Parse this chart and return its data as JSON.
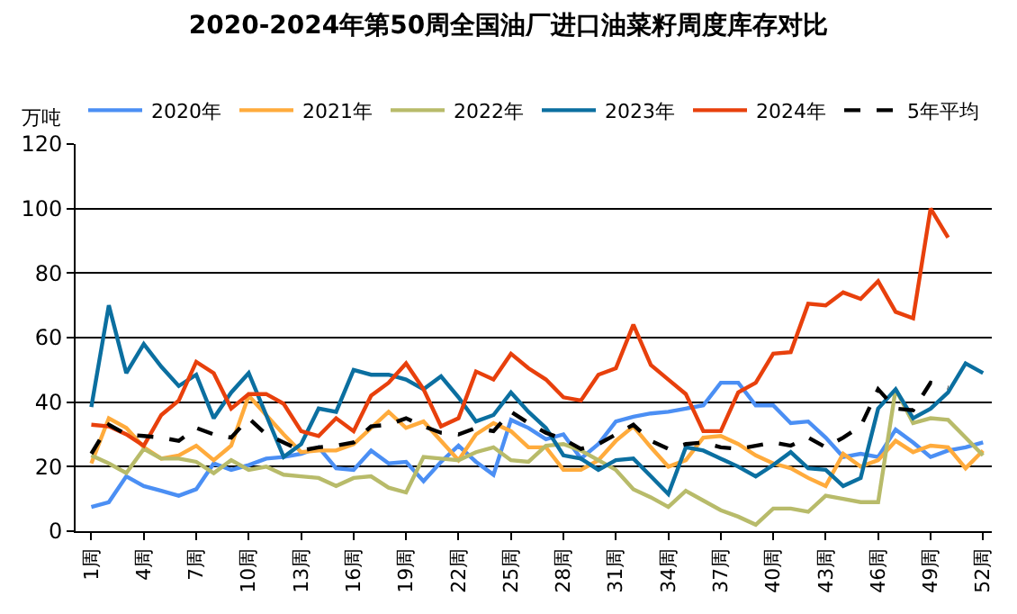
{
  "chart_data": {
    "type": "line",
    "title": "2020-2024年第50周全国油厂进口油菜籽周度库存对比",
    "ylabel": "万吨",
    "categories": [
      "1周",
      null,
      null,
      "4周",
      null,
      null,
      "7周",
      null,
      null,
      "10周",
      null,
      null,
      "13周",
      null,
      null,
      "16周",
      null,
      null,
      "19周",
      null,
      null,
      "22周",
      null,
      null,
      "25周",
      null,
      null,
      "28周",
      null,
      null,
      "31周",
      null,
      null,
      "34周",
      null,
      null,
      "37周",
      null,
      null,
      "40周",
      null,
      null,
      "43周",
      null,
      null,
      "46周",
      null,
      null,
      "49周",
      null,
      null,
      "52周"
    ],
    "ylim": [
      0,
      120
    ],
    "yticks": [
      0,
      20,
      40,
      60,
      80,
      100,
      120
    ],
    "grid": "y",
    "legend": "top",
    "marker": "none",
    "line_style": "solid",
    "series": [
      {
        "name": "2020年",
        "color": "#4b8ff4",
        "values": [
          7.5,
          9,
          17,
          14,
          12.5,
          11,
          13,
          21,
          19,
          20.5,
          22.5,
          23,
          24,
          26,
          19.5,
          19,
          25,
          21,
          21.5,
          15.5,
          21.5,
          26.5,
          21.5,
          17.5,
          34.5,
          32,
          28.5,
          30,
          22.5,
          27,
          34,
          35.5,
          36.5,
          37,
          38,
          39,
          46,
          46,
          39,
          39,
          33.5,
          34,
          29,
          23,
          24,
          23,
          31.5,
          27.5,
          23,
          25,
          26,
          27.5
        ]
      },
      {
        "name": "2021年",
        "color": "#ffab3c",
        "values": [
          21,
          35,
          32,
          26,
          22.5,
          23.5,
          26.5,
          22,
          26.5,
          42,
          36,
          30,
          24.5,
          25,
          25,
          27,
          32,
          37,
          32,
          34,
          28,
          22,
          30,
          33.5,
          31,
          26,
          26,
          19,
          19,
          22,
          28,
          32.5,
          26,
          20,
          22,
          29,
          29.5,
          27,
          23.5,
          21,
          19.5,
          16.5,
          14,
          24,
          20,
          22,
          28,
          24.5,
          26.5,
          26,
          19.5,
          25
        ]
      },
      {
        "name": "2022年",
        "color": "#b8bb6a",
        "values": [
          23.5,
          21,
          18,
          25.5,
          22.5,
          22.5,
          21.5,
          18,
          22,
          19,
          20,
          17.5,
          17,
          16.5,
          14,
          16.5,
          17,
          13.5,
          12,
          23,
          22.5,
          22,
          24.5,
          26,
          22,
          21.5,
          26.5,
          27,
          25,
          22,
          19,
          13,
          10.5,
          7.5,
          12.5,
          9.5,
          6.5,
          4.5,
          2,
          7,
          7,
          6,
          11,
          10,
          9,
          9,
          44,
          33.5,
          35,
          34.5,
          29,
          23.5
        ]
      },
      {
        "name": "2023年",
        "color": "#0b6fa0",
        "values": [
          38.5,
          70,
          49,
          58,
          51,
          45,
          48.5,
          35,
          43,
          49,
          36,
          23,
          27,
          38,
          37,
          50,
          48.5,
          48.5,
          47,
          44,
          48,
          41.5,
          34,
          36,
          43,
          37,
          32,
          23.5,
          22.5,
          19,
          22,
          22.5,
          17,
          11.5,
          26,
          25,
          22.5,
          20,
          17,
          20.5,
          24.5,
          19.5,
          19,
          14,
          16.5,
          38,
          44,
          35,
          38,
          43,
          52,
          49
        ]
      },
      {
        "name": "2024年",
        "color": "#e8400c",
        "values": [
          33,
          32.5,
          30,
          26.5,
          36,
          40.5,
          52.5,
          49,
          38,
          42.5,
          42.5,
          39.5,
          31,
          29.5,
          35,
          31,
          42,
          46,
          52,
          44,
          32.5,
          35,
          49.5,
          47,
          55,
          50.5,
          47,
          41.5,
          40.5,
          48.5,
          50.5,
          64,
          51.5,
          47,
          42.5,
          31,
          31,
          43,
          46,
          55,
          55.5,
          70.5,
          70,
          74,
          72,
          77.5,
          68,
          66,
          100,
          91,
          null,
          null
        ]
      },
      {
        "name": "5年平均",
        "color": "#000000",
        "line_style": "dashed",
        "values": [
          24,
          33,
          30,
          29.5,
          29,
          28,
          32,
          30,
          29,
          35,
          30,
          27.5,
          25,
          26,
          26.5,
          27.5,
          32.5,
          33,
          35,
          32.5,
          30.5,
          30,
          32,
          31,
          37,
          33.5,
          30.5,
          28.5,
          25.5,
          27,
          30,
          33,
          28,
          25.5,
          27,
          27.5,
          26,
          25.5,
          26.5,
          27.5,
          26.5,
          29,
          26,
          29,
          32.5,
          44,
          38,
          37.5,
          46,
          44.5,
          null,
          null
        ]
      }
    ]
  }
}
